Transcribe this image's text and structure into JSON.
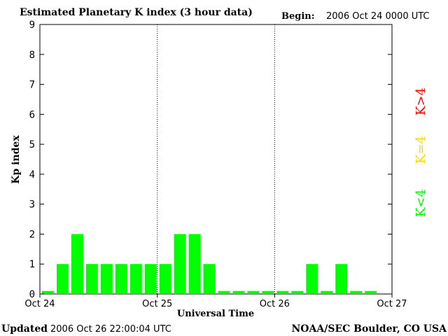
{
  "title": "Estimated Planetary K index (3 hour data)",
  "begin_label": "Begin:",
  "begin_value": "2006 Oct 24 0000 UTC",
  "updated_label": "Updated",
  "updated_value": "2006 Oct 26 22:00:04 UTC",
  "credit": "NOAA/SEC Boulder, CO USA",
  "legend": {
    "high": "K>4",
    "equal": "K=4",
    "low": "K<4"
  },
  "colors": {
    "low": "#00ff00",
    "equal": "#ffd700",
    "high": "#ff0000",
    "axis": "#000000"
  },
  "chart_data": {
    "type": "bar",
    "title": "Estimated Planetary K index (3 hour data)",
    "xlabel": "Universal Time",
    "ylabel": "Kp index",
    "ylim": [
      0,
      9
    ],
    "yticks": [
      "0",
      "1",
      "2",
      "3",
      "4",
      "5",
      "6",
      "7",
      "8",
      "9"
    ],
    "xticks": [
      "Oct 24",
      "Oct 25",
      "Oct 26",
      "Oct 27"
    ],
    "day_separators": [
      "Oct 25",
      "Oct 26"
    ],
    "interval_hours": 3,
    "values": [
      0,
      1,
      2,
      1,
      1,
      1,
      1,
      1,
      1,
      2,
      2,
      1,
      0,
      0,
      0,
      0,
      0,
      0,
      1,
      0,
      1,
      0,
      0
    ],
    "grid": false
  }
}
